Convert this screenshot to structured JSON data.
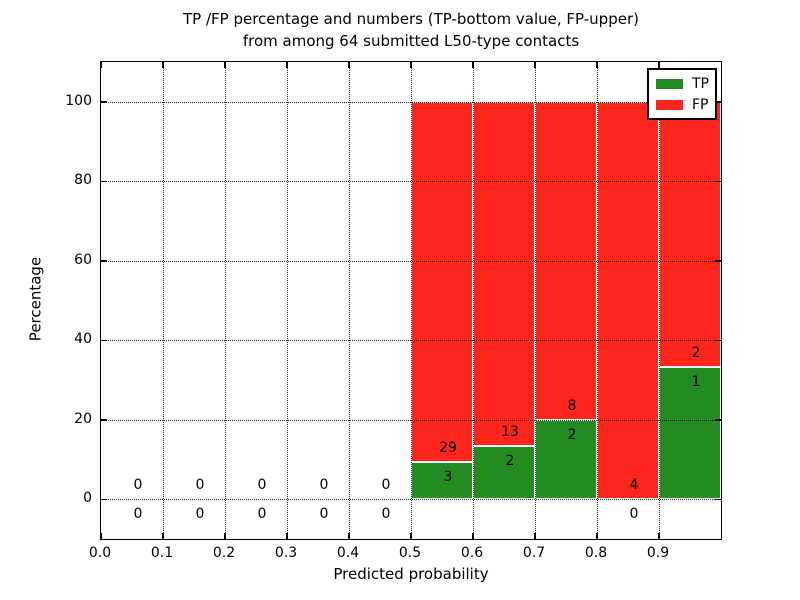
{
  "title": {
    "line1": "TP /FP percentage and numbers (TP-bottom value, FP-upper)",
    "line2": "from among 64 submitted L50-type contacts"
  },
  "axes": {
    "xlabel": "Predicted probability",
    "ylabel": "Percentage",
    "x_tick_labels": [
      "0.0",
      "0.1",
      "0.2",
      "0.3",
      "0.4",
      "0.5",
      "0.6",
      "0.7",
      "0.8",
      "0.9"
    ],
    "y_tick_labels": [
      "0",
      "20",
      "40",
      "60",
      "80",
      "100"
    ]
  },
  "legend": {
    "items": [
      {
        "label": "TP",
        "color": "#228b22"
      },
      {
        "label": "FP",
        "color": "#fb251c"
      }
    ]
  },
  "chart_data": {
    "type": "bar",
    "stacked": true,
    "title": "TP /FP percentage and numbers (TP-bottom value, FP-upper) from among 64 submitted L50-type contacts",
    "xlabel": "Predicted probability",
    "ylabel": "Percentage",
    "xlim": [
      0.0,
      1.0
    ],
    "ylim": [
      -10,
      110
    ],
    "xticks": [
      0.0,
      0.1,
      0.2,
      0.3,
      0.4,
      0.5,
      0.6,
      0.7,
      0.8,
      0.9
    ],
    "yticks": [
      0,
      20,
      40,
      60,
      80,
      100
    ],
    "grid": true,
    "grid_style": "dotted",
    "legend_position": "upper right",
    "total_contacts": 64,
    "bin_width": 0.1,
    "bin_centers": [
      0.05,
      0.15,
      0.25,
      0.35,
      0.45,
      0.55,
      0.65,
      0.75,
      0.85,
      0.95
    ],
    "series": [
      {
        "name": "TP",
        "color": "#228b22",
        "counts": [
          0,
          0,
          0,
          0,
          0,
          3,
          2,
          2,
          0,
          1
        ],
        "percent": [
          0,
          0,
          0,
          0,
          0,
          9.375,
          13.333,
          20.0,
          0.0,
          33.333
        ]
      },
      {
        "name": "FP",
        "color": "#fb251c",
        "counts": [
          0,
          0,
          0,
          0,
          0,
          29,
          13,
          8,
          4,
          2
        ],
        "percent": [
          0,
          0,
          0,
          0,
          0,
          90.625,
          86.667,
          80.0,
          100.0,
          66.667
        ]
      }
    ]
  }
}
